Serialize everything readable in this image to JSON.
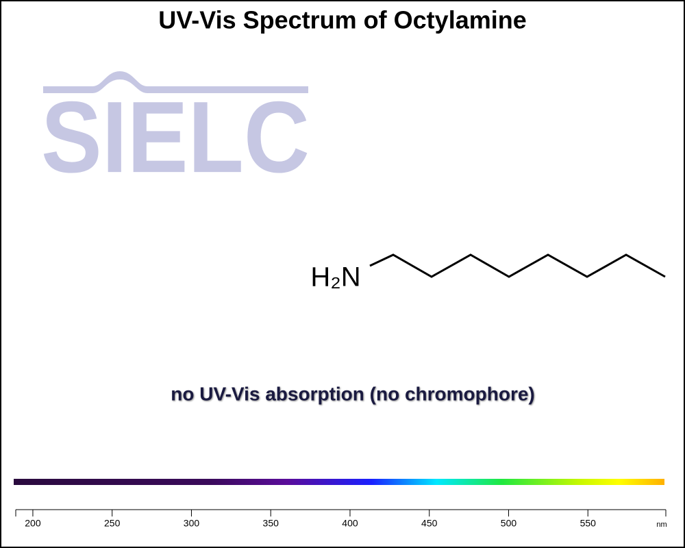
{
  "chart_data": {
    "type": "spectrum",
    "title": "UV-Vis Spectrum of Octylamine",
    "watermark": "SIELC",
    "molecule_label": "H₂N",
    "annotation": "no UV-Vis absorption (no chromophore)",
    "xlim": [
      190,
      600
    ],
    "xticks": [
      200,
      250,
      300,
      350,
      400,
      450,
      500,
      550
    ],
    "x_unit": "nm"
  }
}
